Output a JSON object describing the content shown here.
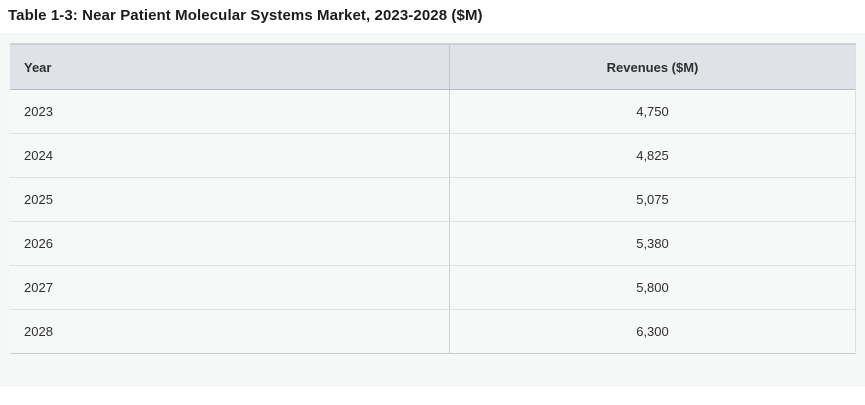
{
  "title": "Table 1-3: Near Patient Molecular Systems Market, 2023-2028 ($M)",
  "table": {
    "columns": [
      "Year",
      "Revenues ($M)"
    ],
    "rows": [
      {
        "year": "2023",
        "revenue": "4,750"
      },
      {
        "year": "2024",
        "revenue": "4,825"
      },
      {
        "year": "2025",
        "revenue": "5,075"
      },
      {
        "year": "2026",
        "revenue": "5,380"
      },
      {
        "year": "2027",
        "revenue": "5,800"
      },
      {
        "year": "2028",
        "revenue": "6,300"
      }
    ]
  },
  "colors": {
    "header_bg": "#dfe3e8",
    "row_bg": "#f7f8f8",
    "page_bg": "#f6f7f7",
    "divider": "#c3c7cc",
    "text": "#2f2f2f",
    "title_text": "#1c1c1c"
  },
  "chart_data": {
    "type": "table",
    "title": "Table 1-3: Near Patient Molecular Systems Market, 2023-2028 ($M)",
    "columns": [
      "Year",
      "Revenues ($M)"
    ],
    "categories": [
      "2023",
      "2024",
      "2025",
      "2026",
      "2027",
      "2028"
    ],
    "values": [
      4750,
      4825,
      5075,
      5380,
      5800,
      6300
    ],
    "xlabel": "Year",
    "ylabel": "Revenues ($M)"
  }
}
